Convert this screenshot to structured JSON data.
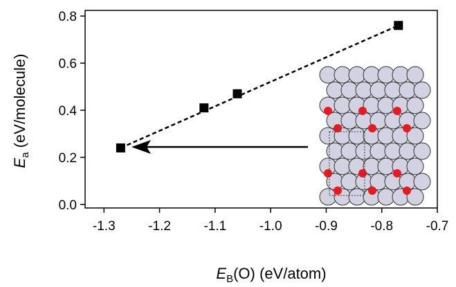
{
  "chart_data": {
    "type": "scatter",
    "x": [
      -1.27,
      -1.12,
      -1.06,
      -0.77
    ],
    "values": [
      0.24,
      0.41,
      0.47,
      0.76
    ],
    "color": "#000000",
    "fit_line": true,
    "xlim": [
      -1.334,
      -0.7
    ],
    "ylim": [
      -0.015,
      0.824
    ],
    "xticks": [
      -1.3,
      -1.2,
      -1.1,
      {
        "value": -1,
        "label": "-1.0"
      },
      -0.9,
      -0.8,
      -0.7
    ],
    "yticks": [
      {
        "value": 0,
        "label": "0.0"
      },
      0.2,
      0.4,
      0.6,
      0.8
    ],
    "xlabel": {
      "main": "E",
      "sub": "B",
      "rest": "(O) (eV/atom)"
    },
    "ylabel": {
      "main": "E",
      "sub": "a",
      "rest": " (eV/molecule)"
    }
  }
}
